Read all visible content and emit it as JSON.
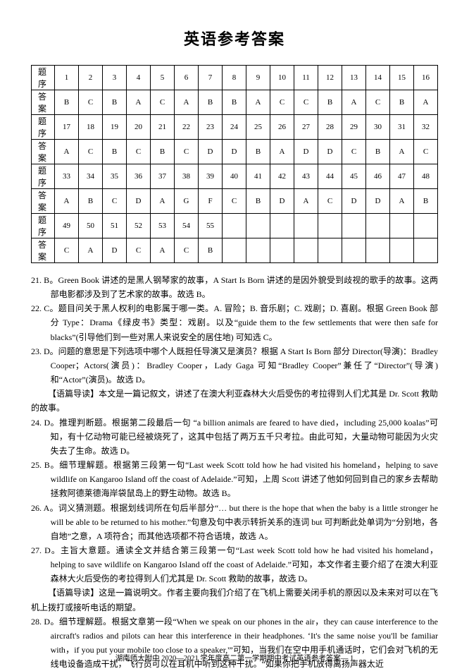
{
  "title": "英语参考答案",
  "table": {
    "row_label_q": "题 序",
    "row_label_a": "答 案",
    "rows": [
      {
        "nums": [
          1,
          2,
          3,
          4,
          5,
          6,
          7,
          8,
          9,
          10,
          11,
          12,
          13,
          14,
          15,
          16
        ],
        "ans": [
          "B",
          "C",
          "B",
          "A",
          "C",
          "A",
          "B",
          "B",
          "A",
          "C",
          "C",
          "B",
          "A",
          "C",
          "B",
          "A"
        ]
      },
      {
        "nums": [
          17,
          18,
          19,
          20,
          21,
          22,
          23,
          24,
          25,
          26,
          27,
          28,
          29,
          30,
          31,
          32
        ],
        "ans": [
          "A",
          "C",
          "B",
          "C",
          "B",
          "C",
          "D",
          "D",
          "B",
          "A",
          "D",
          "D",
          "C",
          "B",
          "A",
          "C"
        ]
      },
      {
        "nums": [
          33,
          34,
          35,
          36,
          37,
          38,
          39,
          40,
          41,
          42,
          43,
          44,
          45,
          46,
          47,
          48
        ],
        "ans": [
          "A",
          "B",
          "C",
          "D",
          "A",
          "G",
          "F",
          "C",
          "B",
          "D",
          "A",
          "C",
          "D",
          "D",
          "A",
          "B"
        ]
      },
      {
        "nums": [
          49,
          50,
          51,
          52,
          53,
          54,
          55,
          "",
          "",
          "",
          "",
          "",
          "",
          "",
          "",
          ""
        ],
        "ans": [
          "C",
          "A",
          "D",
          "C",
          "A",
          "C",
          "B",
          "",
          "",
          "",
          "",
          "",
          "",
          "",
          "",
          ""
        ]
      }
    ]
  },
  "explanations": [
    {
      "cls": "item",
      "text": "21. B。Green Book 讲述的是黑人钢琴家的故事，A Start Is Born 讲述的是因外貌受到歧视的歌手的故事。这两部电影都涉及到了艺术家的故事。故选 B。"
    },
    {
      "cls": "item",
      "text": "22. C。题目问关于黑人权利的电影属于哪一类。A. 冒险；B. 音乐剧；C. 戏剧；D. 喜剧。根据 Green Book 部分 Type：Drama《绿皮书》类型：戏剧。以及“guide them to the few settlements that were then safe for blacks”(引导他们到一些对黑人来说安全的居住地) 可知选 C。"
    },
    {
      "cls": "item",
      "text": "23. D。问题的意思是下列选项中哪个人既担任导演又是演员？根据 A Start Is Born 部分 Director(导演)：Bradley Cooper；Actors(演员)：Bradley Cooper，Lady Gaga 可知“Bradley Cooper”兼任了“Director”(导演)和“Actor”(演员)。故选 D。"
    },
    {
      "cls": "sub",
      "text": "【语篇导读】本文是一篇记叙文，讲述了在澳大利亚森林大火后受伤的考拉得到人们尤其是 Dr. Scott 救助的故事。"
    },
    {
      "cls": "item",
      "text": "24. D。推理判断题。根据第二段最后一句 “a billion animals are feared to have died，including 25,000 koalas”可知，有十亿动物可能已经被烧死了，这其中包括了两万五千只考拉。由此可知，大量动物可能因为火灾失去了生命。故选 D。"
    },
    {
      "cls": "item",
      "text": "25. B。细节理解题。根据第三段第一句“Last week Scott told how he had visited his homeland，helping to save wildlife on Kangaroo Island off the coast of Adelaide.”可知，上周 Scott 讲述了他如何回到自己的家乡去帮助拯救阿德莱德海岸袋鼠岛上的野生动物。故选 B。"
    },
    {
      "cls": "item",
      "text": "26. A。词义猜测题。根据划线词所在句后半部分“… but there is the hope that when the baby is a little stronger he will be able to be returned to his mother.”句意及句中表示转折关系的连词 but 可判断此处单词为“分别地，各自地”之意，A 项符合；而其他选项都不符合语境，故选 A。"
    },
    {
      "cls": "item",
      "text": "27. D。主旨大意题。通读全文并结合第三段第一句“Last week Scott told how he had visited his homeland，helping to save wildlife on Kangaroo Island off the coast of Adelaide.”可知，本文作者主要介绍了在澳大利亚森林大火后受伤的考拉得到人们尤其是 Dr. Scott 救助的故事，故选 D。"
    },
    {
      "cls": "sub",
      "text": "【语篇导读】这是一篇说明文。作者主要向我们介绍了在飞机上需要关闭手机的原因以及未来对可以在飞机上拨打或接听电话的期望。"
    },
    {
      "cls": "item",
      "text": "28. D。细节理解题。根据文章第一段“When we speak on our phones in the air，they can cause interference to the aircraft's radios and pilots can hear this interference in their headphones. ‘It's the same noise you'll be familiar with，if you put your mobile too close to a speaker,'”可知，当我们在空中用手机通话时，它们会对飞机的无线电设备造成干扰，飞行员可以在耳机中听到这种干扰。“如果你把手机放得离扬声器太近"
    }
  ],
  "footer": "湖南师大附中 2020—2021 学年度高二第一学期期中考试英语参考答案— 1"
}
